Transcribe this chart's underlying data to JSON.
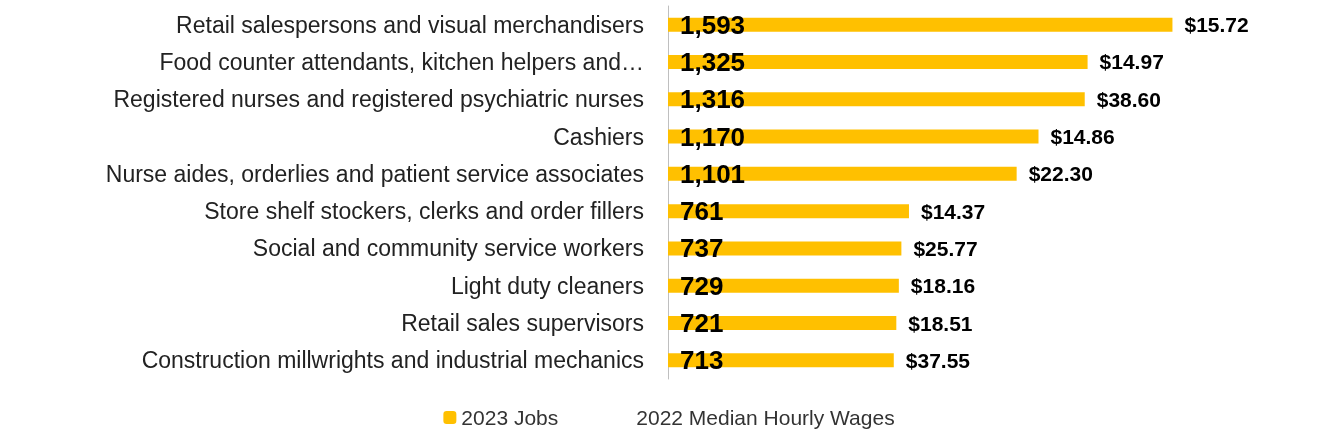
{
  "chart_data": {
    "type": "bar",
    "orientation": "horizontal",
    "categories": [
      "Retail salespersons and visual merchandisers",
      "Food counter attendants, kitchen helpers and…",
      "Registered nurses and registered psychiatric nurses",
      "Cashiers",
      "Nurse aides, orderlies and patient service associates",
      "Store shelf stockers, clerks and order fillers",
      "Social and community service workers",
      "Light duty cleaners",
      "Retail sales supervisors",
      "Construction millwrights and industrial mechanics"
    ],
    "series": [
      {
        "name": "2023 Jobs",
        "color": "#ffc000",
        "values": [
          1593,
          1325,
          1316,
          1170,
          1101,
          761,
          737,
          729,
          721,
          713
        ],
        "value_labels": [
          "1,593",
          "1,325",
          "1,316",
          "1,170",
          "1,101",
          "761",
          "737",
          "729",
          "721",
          "713"
        ]
      },
      {
        "name": "2022 Median Hourly Wages",
        "values": [
          null,
          null,
          null,
          null,
          null,
          null,
          null,
          null,
          null,
          null
        ]
      }
    ],
    "annotations": [
      {
        "text": "$15.72",
        "x": 1593,
        "y": "Retail salespersons and visual merchandisers"
      },
      {
        "text": "$14.97",
        "x": 1325,
        "y": "Food counter attendants, kitchen helpers and…"
      },
      {
        "text": "$38.60",
        "x": 1316,
        "y": "Registered nurses and registered psychiatric nurses"
      },
      {
        "text": "$14.86",
        "x": 1170,
        "y": "Cashiers"
      },
      {
        "text": "$22.30",
        "x": 1101,
        "y": "Nurse aides, orderlies and patient service associates"
      },
      {
        "text": "$14.37",
        "x": 761,
        "y": "Store shelf stockers, clerks and order fillers"
      },
      {
        "text": "$25.77",
        "x": 737,
        "y": "Social and community service workers"
      },
      {
        "text": "$18.16",
        "x": 729,
        "y": "Light duty cleaners"
      },
      {
        "text": "$18.51",
        "x": 721,
        "y": "Retail sales supervisors"
      },
      {
        "text": "$37.55",
        "x": 713,
        "y": "Construction millwrights and industrial mechanics"
      }
    ],
    "legend": "bottom"
  }
}
